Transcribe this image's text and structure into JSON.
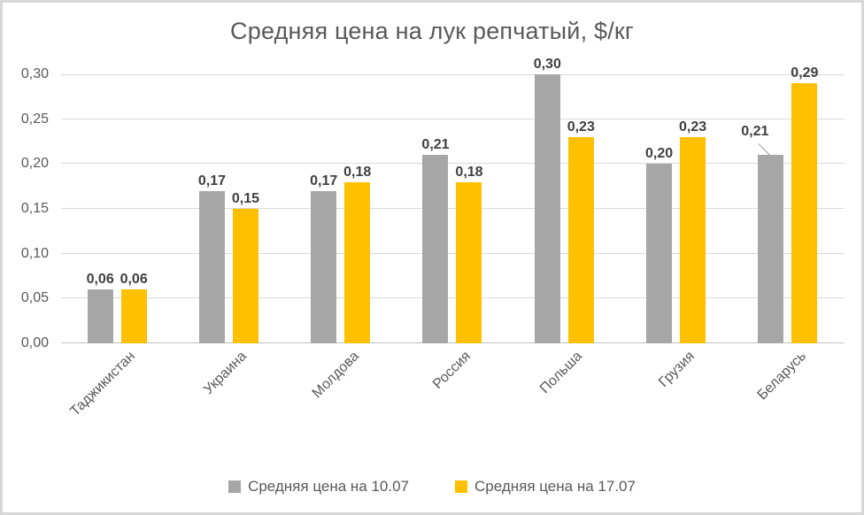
{
  "chart_data": {
    "type": "bar",
    "title": "Средняя цена на лук репчатый, $/кг",
    "categories": [
      "Таджикистан",
      "Украина",
      "Молдова",
      "Россия",
      "Польша",
      "Грузия",
      "Беларусь"
    ],
    "series": [
      {
        "name": "Средняя цена на 10.07",
        "color": "#a6a6a6",
        "values": [
          0.06,
          0.17,
          0.17,
          0.21,
          0.3,
          0.2,
          0.21
        ],
        "labels": [
          "0,06",
          "0,17",
          "0,17",
          "0,21",
          "0,30",
          "0,20",
          "0,21"
        ]
      },
      {
        "name": "Средняя цена на 17.07",
        "color": "#ffc000",
        "values": [
          0.06,
          0.15,
          0.18,
          0.18,
          0.23,
          0.23,
          0.29
        ],
        "labels": [
          "0,06",
          "0,15",
          "0,18",
          "0,18",
          "0,23",
          "0,23",
          "0,29"
        ]
      }
    ],
    "ylim": [
      0,
      0.3
    ],
    "ytick_step": 0.05,
    "ytick_labels": [
      "0,00",
      "0,05",
      "0,10",
      "0,15",
      "0,20",
      "0,25",
      "0,30"
    ],
    "grid": true,
    "legend_position": "bottom",
    "value_label_callout": {
      "series_index": 0,
      "category_index": 6
    }
  }
}
